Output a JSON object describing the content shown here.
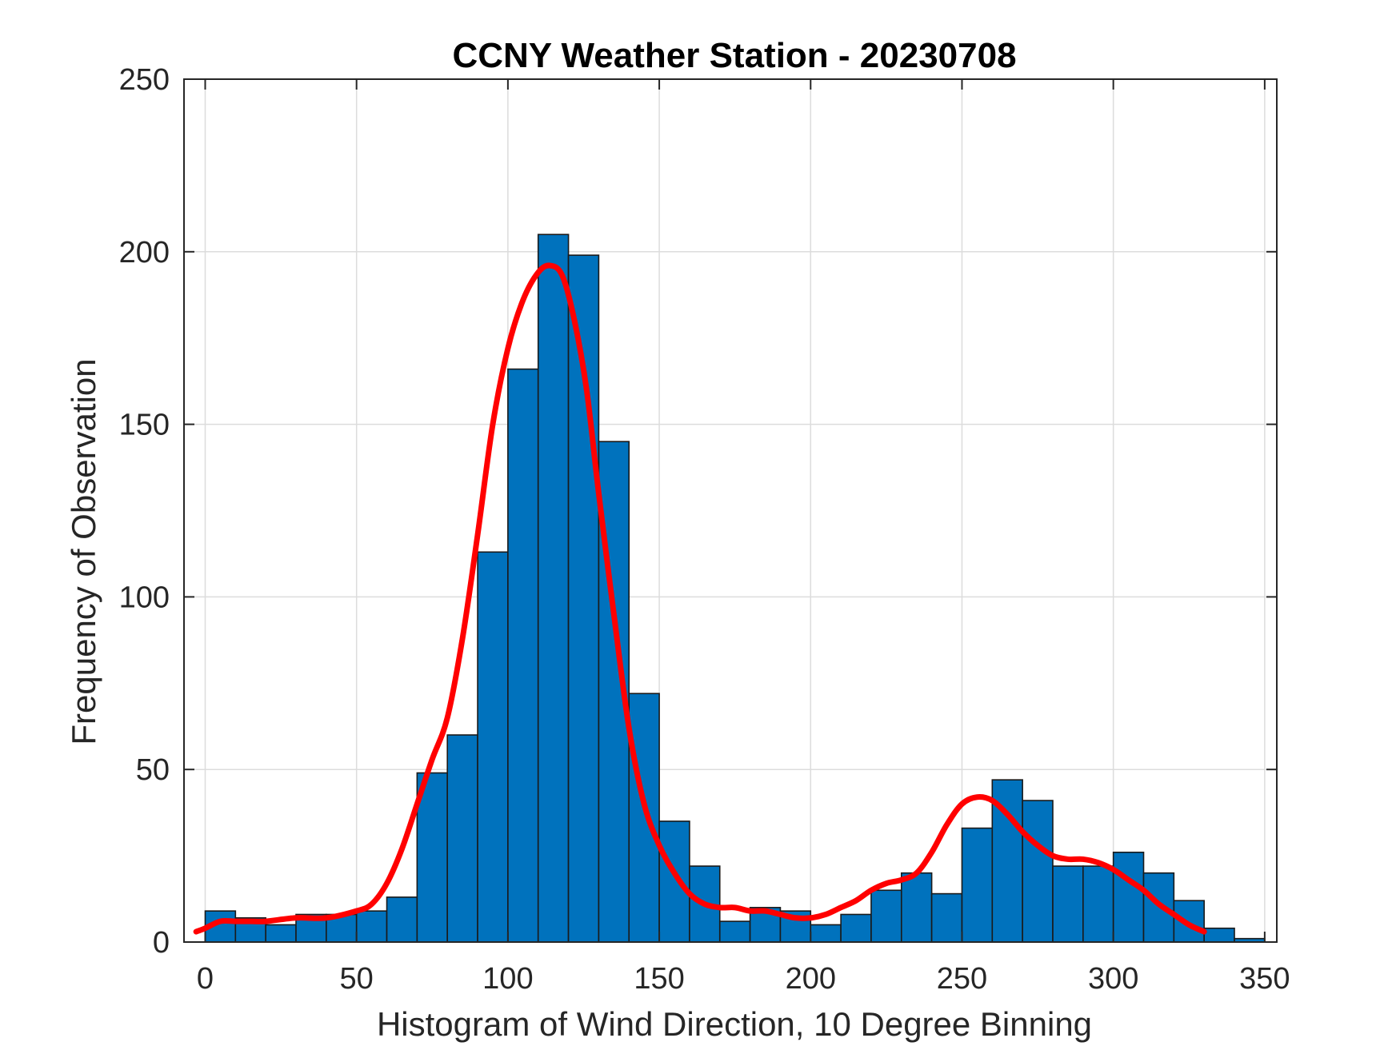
{
  "chart_data": {
    "type": "bar",
    "title": "CCNY Weather Station - 20230708",
    "xlabel": "Histogram of Wind Direction, 10 Degree Binning",
    "ylabel": "Frequency of Observation",
    "xlim": [
      -7,
      354
    ],
    "ylim": [
      0,
      250
    ],
    "xticks": [
      0,
      50,
      100,
      150,
      200,
      250,
      300,
      350
    ],
    "yticks": [
      0,
      50,
      100,
      150,
      200,
      250
    ],
    "grid": true,
    "bin_width": 10,
    "bins": {
      "name": "Wind direction histogram",
      "x": [
        0,
        10,
        20,
        30,
        40,
        50,
        60,
        70,
        80,
        90,
        100,
        110,
        120,
        130,
        140,
        150,
        160,
        170,
        180,
        190,
        200,
        210,
        220,
        230,
        240,
        250,
        260,
        270,
        280,
        290,
        300,
        310,
        320,
        330,
        340
      ],
      "values": [
        9,
        7,
        5,
        8,
        8,
        9,
        13,
        49,
        60,
        113,
        166,
        205,
        199,
        145,
        72,
        35,
        22,
        6,
        10,
        9,
        5,
        8,
        15,
        20,
        14,
        33,
        47,
        41,
        22,
        22,
        26,
        20,
        12,
        4,
        1
      ],
      "color": "#0072BD",
      "edge_color": "#1a1a1a"
    },
    "fit_curve": {
      "name": "Smoothed fit",
      "color": "#FF0000",
      "x": [
        -3,
        0,
        5,
        10,
        15,
        20,
        30,
        40,
        50,
        55,
        60,
        65,
        70,
        75,
        80,
        85,
        90,
        95,
        100,
        105,
        110,
        114,
        118,
        122,
        126,
        130,
        135,
        140,
        145,
        150,
        155,
        160,
        165,
        170,
        175,
        180,
        185,
        190,
        195,
        200,
        205,
        210,
        215,
        220,
        225,
        230,
        235,
        240,
        245,
        250,
        255,
        260,
        265,
        270,
        275,
        280,
        285,
        290,
        295,
        300,
        305,
        310,
        315,
        320,
        325,
        330
      ],
      "y": [
        3,
        4,
        6,
        6,
        6,
        6,
        7,
        7,
        9,
        11,
        17,
        27,
        40,
        53,
        65,
        88,
        118,
        150,
        172,
        186,
        194,
        196,
        193,
        180,
        160,
        130,
        95,
        62,
        40,
        28,
        20,
        14,
        11,
        10,
        10,
        9,
        9,
        8,
        7,
        7,
        8,
        10,
        12,
        15,
        17,
        18,
        20,
        26,
        34,
        40,
        42,
        41,
        37,
        32,
        28,
        25,
        24,
        24,
        23,
        21,
        18,
        15,
        11,
        8,
        5,
        3
      ]
    }
  }
}
